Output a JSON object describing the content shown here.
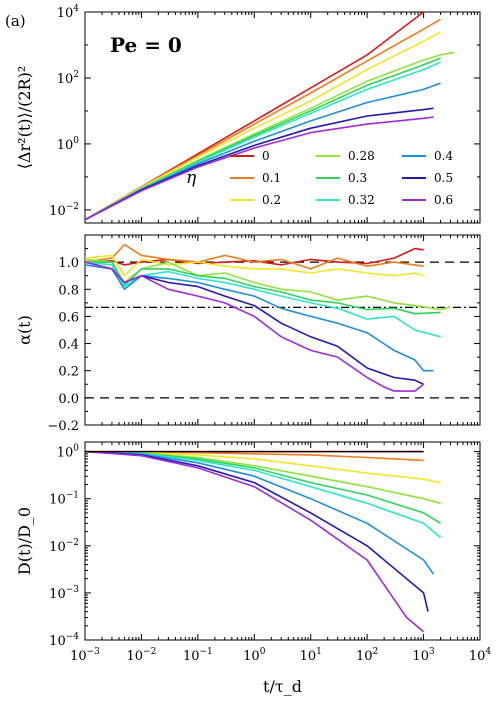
{
  "panel_tag": "(a)",
  "annotation": "Pe = 0",
  "legend_title": "η",
  "x_axis": {
    "label": "t/τ_d",
    "scale": "log",
    "range": [
      0.001,
      10000
    ],
    "ticks": [
      {
        "value": 0.001,
        "label": "10^-3"
      },
      {
        "value": 0.01,
        "label": "10^-2"
      },
      {
        "value": 0.1,
        "label": "10^-1"
      },
      {
        "value": 1,
        "label": "10^0"
      },
      {
        "value": 10,
        "label": "10^1"
      },
      {
        "value": 100,
        "label": "10^2"
      },
      {
        "value": 1000,
        "label": "10^3"
      },
      {
        "value": 10000,
        "label": "10^4"
      }
    ]
  },
  "series_styles": [
    {
      "name": "0",
      "color": "#d7191c"
    },
    {
      "name": "0.1",
      "color": "#f07c1b"
    },
    {
      "name": "0.2",
      "color": "#f2e629"
    },
    {
      "name": "0.28",
      "color": "#8fe33a"
    },
    {
      "name": "0.3",
      "color": "#2fd45a"
    },
    {
      "name": "0.32",
      "color": "#2ee6c8"
    },
    {
      "name": "0.4",
      "color": "#1f8fe0"
    },
    {
      "name": "0.5",
      "color": "#2419b8"
    },
    {
      "name": "0.6",
      "color": "#a12ad8"
    }
  ],
  "chart_data": [
    {
      "type": "line",
      "ylabel": "⟨Δr²(t)⟩/(2R)²",
      "yscale": "log",
      "ylim": [
        0.004,
        10000
      ],
      "yticks": [
        {
          "value": 0.01,
          "label": "10^-2"
        },
        {
          "value": 1,
          "label": "10^0"
        },
        {
          "value": 100,
          "label": "10^2"
        },
        {
          "value": 10000,
          "label": "10^4"
        }
      ],
      "legend": "lower-right",
      "series": [
        {
          "name": "0",
          "x": [
            0.001,
            0.01,
            0.1,
            1,
            10,
            100,
            1000
          ],
          "y": [
            0.005,
            0.05,
            0.5,
            5,
            50,
            500,
            10000
          ]
        },
        {
          "name": "0.1",
          "x": [
            0.001,
            0.01,
            0.1,
            1,
            10,
            100,
            1000,
            2000
          ],
          "y": [
            0.005,
            0.05,
            0.45,
            4,
            35,
            330,
            3000,
            6000
          ]
        },
        {
          "name": "0.2",
          "x": [
            0.001,
            0.01,
            0.1,
            1,
            10,
            100,
            1000,
            2000
          ],
          "y": [
            0.005,
            0.048,
            0.4,
            3,
            20,
            180,
            1300,
            2500
          ]
        },
        {
          "name": "0.28",
          "x": [
            0.001,
            0.01,
            0.1,
            1,
            10,
            100,
            1000,
            2000,
            3500
          ],
          "y": [
            0.005,
            0.045,
            0.32,
            2,
            12,
            80,
            350,
            500,
            600
          ]
        },
        {
          "name": "0.3",
          "x": [
            0.001,
            0.01,
            0.1,
            1,
            10,
            100,
            1000,
            2000
          ],
          "y": [
            0.005,
            0.044,
            0.3,
            1.8,
            10,
            60,
            250,
            400
          ]
        },
        {
          "name": "0.32",
          "x": [
            0.001,
            0.01,
            0.1,
            1,
            10,
            100,
            1000,
            2000
          ],
          "y": [
            0.005,
            0.043,
            0.28,
            1.6,
            8.5,
            45,
            180,
            300
          ]
        },
        {
          "name": "0.4",
          "x": [
            0.001,
            0.01,
            0.1,
            1,
            10,
            100,
            1000,
            2000
          ],
          "y": [
            0.005,
            0.042,
            0.25,
            1.2,
            5,
            18,
            45,
            70
          ]
        },
        {
          "name": "0.5",
          "x": [
            0.001,
            0.01,
            0.1,
            1,
            10,
            100,
            1000,
            1500
          ],
          "y": [
            0.005,
            0.04,
            0.22,
            0.9,
            3,
            7,
            11,
            12
          ]
        },
        {
          "name": "0.6",
          "x": [
            0.001,
            0.01,
            0.1,
            1,
            10,
            100,
            1000,
            1500
          ],
          "y": [
            0.005,
            0.038,
            0.2,
            0.75,
            2.2,
            4,
            6,
            6.5
          ]
        }
      ]
    },
    {
      "type": "line",
      "ylabel": "α(t)",
      "yscale": "linear",
      "ylim": [
        -0.2,
        1.2
      ],
      "yticks": [
        {
          "value": -0.2,
          "label": "−0.2"
        },
        {
          "value": 0.0,
          "label": "0.0"
        },
        {
          "value": 0.2,
          "label": "0.2"
        },
        {
          "value": 0.4,
          "label": "0.4"
        },
        {
          "value": 0.6,
          "label": "0.6"
        },
        {
          "value": 0.8,
          "label": "0.8"
        },
        {
          "value": 1.0,
          "label": "1.0"
        }
      ],
      "reference_lines": [
        {
          "y": 1.0,
          "style": "dashed"
        },
        {
          "y": 0.6667,
          "style": "dashdot"
        },
        {
          "y": 0.0,
          "style": "dashed"
        }
      ],
      "series": [
        {
          "name": "0",
          "x": [
            0.001,
            0.003,
            0.005,
            0.01,
            0.03,
            0.1,
            0.3,
            1,
            3,
            10,
            30,
            100,
            300,
            700,
            1000
          ],
          "y": [
            1.0,
            1.01,
            0.98,
            1.0,
            1.02,
            0.99,
            1.0,
            1.01,
            0.98,
            1.02,
            1.0,
            0.99,
            1.03,
            1.1,
            1.09
          ]
        },
        {
          "name": "0.1",
          "x": [
            0.001,
            0.003,
            0.005,
            0.01,
            0.03,
            0.1,
            0.3,
            1,
            3,
            10,
            30,
            100,
            300,
            700,
            1000
          ],
          "y": [
            1.0,
            1.03,
            1.13,
            1.05,
            1.02,
            1.0,
            1.05,
            1.0,
            1.02,
            0.95,
            1.03,
            0.97,
            1.0,
            0.98,
            0.97
          ]
        },
        {
          "name": "0.2",
          "x": [
            0.001,
            0.003,
            0.005,
            0.01,
            0.03,
            0.1,
            0.3,
            1,
            3,
            10,
            30,
            100,
            300,
            700,
            1000
          ],
          "y": [
            1.03,
            1.05,
            0.9,
            1.02,
            0.98,
            1.0,
            0.97,
            0.95,
            0.95,
            0.92,
            0.95,
            0.92,
            0.9,
            0.92,
            0.9
          ]
        },
        {
          "name": "0.28",
          "x": [
            0.001,
            0.003,
            0.005,
            0.01,
            0.03,
            0.1,
            0.3,
            1,
            3,
            10,
            30,
            100,
            300,
            700,
            2000,
            3000
          ],
          "y": [
            1.02,
            1.0,
            0.85,
            0.95,
            1.0,
            0.9,
            0.92,
            0.85,
            0.8,
            0.78,
            0.72,
            0.75,
            0.7,
            0.68,
            0.65,
            0.67
          ]
        },
        {
          "name": "0.3",
          "x": [
            0.001,
            0.003,
            0.005,
            0.01,
            0.03,
            0.1,
            0.3,
            1,
            3,
            10,
            30,
            100,
            300,
            700,
            2000
          ],
          "y": [
            1.0,
            1.0,
            0.83,
            0.95,
            0.95,
            0.9,
            0.88,
            0.82,
            0.78,
            0.72,
            0.7,
            0.65,
            0.66,
            0.62,
            0.63
          ]
        },
        {
          "name": "0.32",
          "x": [
            0.001,
            0.003,
            0.005,
            0.01,
            0.03,
            0.1,
            0.3,
            1,
            3,
            10,
            30,
            100,
            300,
            700,
            2000
          ],
          "y": [
            1.0,
            0.98,
            0.82,
            0.9,
            0.93,
            0.88,
            0.85,
            0.8,
            0.75,
            0.7,
            0.66,
            0.58,
            0.6,
            0.5,
            0.45
          ]
        },
        {
          "name": "0.4",
          "x": [
            0.001,
            0.003,
            0.005,
            0.01,
            0.03,
            0.1,
            0.3,
            1,
            3,
            10,
            30,
            100,
            300,
            700,
            1000,
            1500
          ],
          "y": [
            0.98,
            0.95,
            0.8,
            0.9,
            0.88,
            0.85,
            0.8,
            0.75,
            0.66,
            0.6,
            0.55,
            0.48,
            0.35,
            0.28,
            0.2,
            0.2
          ]
        },
        {
          "name": "0.5",
          "x": [
            0.001,
            0.003,
            0.005,
            0.01,
            0.03,
            0.1,
            0.3,
            1,
            3,
            10,
            30,
            100,
            300,
            700,
            1000
          ],
          "y": [
            1.0,
            0.95,
            0.85,
            0.9,
            0.85,
            0.82,
            0.75,
            0.68,
            0.55,
            0.45,
            0.38,
            0.22,
            0.15,
            0.13,
            0.1
          ]
        },
        {
          "name": "0.6",
          "x": [
            0.001,
            0.003,
            0.005,
            0.01,
            0.03,
            0.1,
            0.3,
            1,
            3,
            10,
            30,
            100,
            200,
            300,
            700,
            1000
          ],
          "y": [
            1.0,
            0.95,
            0.85,
            0.9,
            0.8,
            0.75,
            0.7,
            0.6,
            0.45,
            0.35,
            0.3,
            0.15,
            0.08,
            0.05,
            0.05,
            0.1
          ]
        }
      ]
    },
    {
      "type": "line",
      "ylabel": "D(t)/D_0",
      "yscale": "log",
      "ylim": [
        0.0001,
        1.6
      ],
      "yticks": [
        {
          "value": 0.0001,
          "label": "10^-4"
        },
        {
          "value": 0.001,
          "label": "10^-3"
        },
        {
          "value": 0.01,
          "label": "10^-2"
        },
        {
          "value": 0.1,
          "label": "10^-1"
        },
        {
          "value": 1,
          "label": "10^0"
        }
      ],
      "series": [
        {
          "name": "0",
          "x": [
            0.001,
            0.01,
            0.1,
            1,
            10,
            100,
            1000
          ],
          "y": [
            1.0,
            1.0,
            1.0,
            1.0,
            1.0,
            1.0,
            1.0
          ]
        },
        {
          "name": "0.1",
          "x": [
            0.001,
            0.01,
            0.1,
            1,
            10,
            100,
            1000
          ],
          "y": [
            1.0,
            0.98,
            0.95,
            0.9,
            0.85,
            0.75,
            0.65
          ]
        },
        {
          "name": "0.2",
          "x": [
            0.001,
            0.01,
            0.1,
            1,
            10,
            100,
            1000,
            2000
          ],
          "y": [
            1.0,
            0.95,
            0.85,
            0.7,
            0.5,
            0.35,
            0.26,
            0.22
          ]
        },
        {
          "name": "0.28",
          "x": [
            0.001,
            0.01,
            0.1,
            1,
            10,
            100,
            1000,
            2000
          ],
          "y": [
            1.0,
            0.93,
            0.75,
            0.5,
            0.3,
            0.18,
            0.1,
            0.08
          ]
        },
        {
          "name": "0.3",
          "x": [
            0.001,
            0.01,
            0.1,
            1,
            10,
            100,
            1000,
            2000
          ],
          "y": [
            1.0,
            0.92,
            0.7,
            0.45,
            0.22,
            0.12,
            0.05,
            0.03
          ]
        },
        {
          "name": "0.32",
          "x": [
            0.001,
            0.01,
            0.1,
            1,
            10,
            100,
            1000,
            2000
          ],
          "y": [
            1.0,
            0.9,
            0.65,
            0.4,
            0.18,
            0.08,
            0.03,
            0.015
          ]
        },
        {
          "name": "0.4",
          "x": [
            0.001,
            0.01,
            0.1,
            1,
            10,
            100,
            1000,
            1500
          ],
          "y": [
            1.0,
            0.88,
            0.58,
            0.3,
            0.1,
            0.03,
            0.005,
            0.0025
          ]
        },
        {
          "name": "0.5",
          "x": [
            0.001,
            0.01,
            0.1,
            1,
            10,
            100,
            1000,
            1200
          ],
          "y": [
            1.0,
            0.85,
            0.5,
            0.22,
            0.05,
            0.01,
            0.001,
            0.0004
          ]
        },
        {
          "name": "0.6",
          "x": [
            0.001,
            0.01,
            0.1,
            1,
            10,
            100,
            500,
            1000
          ],
          "y": [
            1.0,
            0.82,
            0.45,
            0.18,
            0.035,
            0.005,
            0.0003,
            0.00015
          ]
        }
      ]
    }
  ]
}
